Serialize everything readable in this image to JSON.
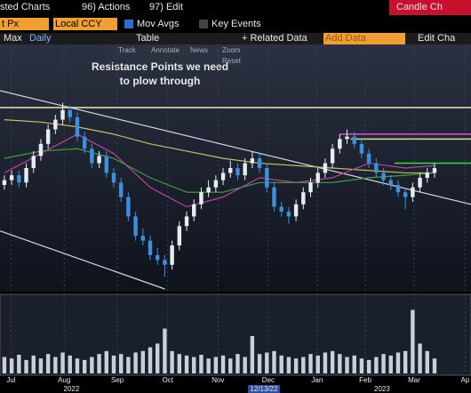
{
  "toolbar": {
    "row1": [
      "sted Charts",
      "96) Actions",
      "97) Edit"
    ],
    "corner": "Candle Ch",
    "row2": {
      "field1": "t Px",
      "field2": "Local CCY",
      "check1": "Mov Avgs",
      "check2": "Key Events"
    },
    "row3": {
      "period": "Max",
      "freq": "Daily",
      "table": "Table",
      "related": "+ Related Data",
      "add": "Add Data",
      "edit": "Edit Cha"
    },
    "mini": [
      "Track",
      "Annotate",
      "News",
      "Zoom",
      "Reset"
    ]
  },
  "chart_data": {
    "type": "candlestick",
    "annotation": [
      "Resistance Points we need",
      "to plow through"
    ],
    "xlim": [
      -0.6,
      64
    ],
    "ylim": [
      0,
      100
    ],
    "grid": true,
    "xticks": [
      {
        "value": 0.9,
        "label": "Jul"
      },
      {
        "value": 8.2,
        "label": "Aug"
      },
      {
        "value": 15.5,
        "label": "Sep"
      },
      {
        "value": 22.4,
        "label": "Oct"
      },
      {
        "value": 29.3,
        "label": "Nov"
      },
      {
        "value": 36.2,
        "label": "Dec"
      },
      {
        "value": 42.9,
        "label": "Jan"
      },
      {
        "value": 49.5,
        "label": "Feb"
      },
      {
        "value": 56.2,
        "label": "Mar"
      },
      {
        "value": 63.2,
        "label": "Ap"
      }
    ],
    "years": [
      {
        "value": 9.2,
        "label": "2022"
      },
      {
        "value": 35.6,
        "label": "12/13/22"
      },
      {
        "value": 51.8,
        "label": "2023"
      }
    ],
    "up_color": "#e8ecf2",
    "down_color": "#3d8fe0",
    "open": [
      43,
      45,
      47,
      44,
      50,
      55,
      60,
      66,
      70,
      74,
      71,
      63,
      58,
      52,
      55,
      48,
      44,
      38,
      30,
      22,
      20,
      14,
      12,
      10,
      18,
      26,
      30,
      35,
      40,
      42,
      45,
      48,
      50,
      47,
      52,
      54,
      50,
      42,
      34,
      32,
      30,
      35,
      40,
      44,
      48,
      52,
      58,
      62,
      63,
      60,
      56,
      52,
      48,
      45,
      43,
      40,
      38,
      42,
      46,
      48
    ],
    "high": [
      47,
      49,
      49,
      52,
      57,
      62,
      68,
      72,
      77,
      76,
      73,
      65,
      60,
      57,
      57,
      50,
      46,
      40,
      32,
      25,
      22,
      17,
      14,
      20,
      28,
      32,
      37,
      42,
      45,
      47,
      50,
      53,
      52,
      54,
      57,
      56,
      52,
      44,
      36,
      34,
      37,
      42,
      46,
      50,
      54,
      60,
      64,
      66,
      65,
      62,
      58,
      54,
      50,
      47,
      45,
      42,
      44,
      48,
      50,
      52
    ],
    "low": [
      41,
      43,
      42,
      42,
      48,
      53,
      58,
      64,
      68,
      69,
      61,
      56,
      50,
      50,
      46,
      42,
      36,
      28,
      20,
      18,
      12,
      10,
      5,
      8,
      16,
      24,
      28,
      33,
      38,
      40,
      43,
      46,
      45,
      45,
      50,
      48,
      40,
      32,
      30,
      27,
      28,
      33,
      38,
      42,
      46,
      50,
      56,
      60,
      58,
      54,
      50,
      46,
      43,
      41,
      38,
      33,
      36,
      40,
      44,
      46
    ],
    "close": [
      45,
      47,
      44,
      50,
      55,
      60,
      66,
      70,
      74,
      71,
      63,
      58,
      52,
      55,
      48,
      44,
      38,
      30,
      22,
      20,
      14,
      12,
      10,
      18,
      26,
      30,
      35,
      40,
      42,
      45,
      48,
      50,
      47,
      52,
      54,
      50,
      42,
      34,
      32,
      30,
      35,
      40,
      44,
      48,
      52,
      58,
      62,
      63,
      60,
      56,
      52,
      48,
      45,
      43,
      40,
      38,
      42,
      46,
      48,
      50
    ],
    "series": [
      {
        "color": "#c8c060",
        "x": [
          0,
          5,
          10,
          15,
          20,
          25,
          30,
          35,
          40,
          45,
          50,
          55,
          59
        ],
        "values": [
          70,
          69,
          67,
          64,
          60,
          57,
          54,
          52,
          51,
          50,
          49,
          48,
          48
        ]
      },
      {
        "color": "#c040a0",
        "x": [
          0,
          5,
          10,
          15,
          20,
          25,
          30,
          35,
          40,
          45,
          50,
          55,
          59
        ],
        "values": [
          48,
          56,
          64,
          56,
          42,
          34,
          38,
          46,
          44,
          46,
          52,
          50,
          51
        ]
      },
      {
        "color": "#40a040",
        "x": [
          0,
          5,
          10,
          15,
          20,
          25,
          30,
          35,
          40,
          45,
          50,
          55,
          59
        ],
        "values": [
          54,
          57,
          58,
          54,
          46,
          40,
          40,
          44,
          44,
          44,
          46,
          47,
          48
        ]
      }
    ],
    "trend_lines": [
      {
        "color": "#d0d4dc",
        "points": [
          [
            -0.6,
            82
          ],
          [
            64,
            35
          ]
        ]
      },
      {
        "color": "#d0d4dc",
        "points": [
          [
            -0.6,
            24
          ],
          [
            22,
            0
          ]
        ]
      }
    ],
    "levels": [
      {
        "value": 75,
        "from": -0.6,
        "color": "#e8e8b8"
      },
      {
        "value": 64,
        "from": 46,
        "color": "#e050e0"
      },
      {
        "value": 62,
        "from": 47.5,
        "color": "#e8e080"
      },
      {
        "value": 52,
        "from": 53.5,
        "color": "#30e030"
      }
    ],
    "volume": {
      "ylim": [
        0,
        100
      ],
      "color": "#c8d0dc",
      "values": [
        22,
        20,
        25,
        18,
        24,
        20,
        26,
        22,
        28,
        24,
        20,
        18,
        22,
        26,
        30,
        24,
        26,
        22,
        28,
        30,
        35,
        40,
        60,
        30,
        26,
        24,
        22,
        25,
        20,
        22,
        24,
        20,
        26,
        22,
        50,
        26,
        28,
        30,
        24,
        22,
        20,
        22,
        26,
        24,
        28,
        30,
        26,
        22,
        24,
        20,
        18,
        22,
        26,
        24,
        28,
        30,
        85,
        40,
        30,
        20
      ]
    }
  }
}
